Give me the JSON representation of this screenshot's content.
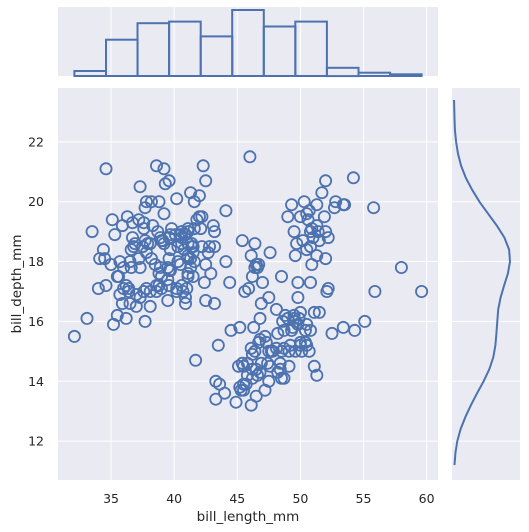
{
  "chart_data": {
    "type": "scatter",
    "joint": {
      "xlabel": "bill_length_mm",
      "ylabel": "bill_depth_mm",
      "xlim": [
        30.8,
        60.9
      ],
      "ylim": [
        10.7,
        23.8
      ],
      "xticks": [
        35,
        40,
        45,
        50,
        55,
        60
      ],
      "yticks": [
        12,
        14,
        16,
        18,
        20,
        22
      ],
      "grid": true,
      "marker": "open-circle",
      "points": [
        [
          32.1,
          15.5
        ],
        [
          33.1,
          16.1
        ],
        [
          33.5,
          19.0
        ],
        [
          34.0,
          17.1
        ],
        [
          34.1,
          18.1
        ],
        [
          34.4,
          18.4
        ],
        [
          34.5,
          18.1
        ],
        [
          34.6,
          21.1
        ],
        [
          34.6,
          17.2
        ],
        [
          35.0,
          17.9
        ],
        [
          35.1,
          19.4
        ],
        [
          35.2,
          15.9
        ],
        [
          35.3,
          18.9
        ],
        [
          35.5,
          16.2
        ],
        [
          35.5,
          17.5
        ],
        [
          35.6,
          17.5
        ],
        [
          35.7,
          16.9
        ],
        [
          35.7,
          18.0
        ],
        [
          35.9,
          16.6
        ],
        [
          35.9,
          19.2
        ],
        [
          36.0,
          17.1
        ],
        [
          36.0,
          17.8
        ],
        [
          36.2,
          16.1
        ],
        [
          36.2,
          17.2
        ],
        [
          36.3,
          19.5
        ],
        [
          36.4,
          17.0
        ],
        [
          36.4,
          17.1
        ],
        [
          36.5,
          16.6
        ],
        [
          36.5,
          18.0
        ],
        [
          36.6,
          17.8
        ],
        [
          36.6,
          18.4
        ],
        [
          36.7,
          18.8
        ],
        [
          36.7,
          19.3
        ],
        [
          36.8,
          18.5
        ],
        [
          36.9,
          18.6
        ],
        [
          37.0,
          16.5
        ],
        [
          37.0,
          16.9
        ],
        [
          37.2,
          18.1
        ],
        [
          37.2,
          19.4
        ],
        [
          37.3,
          16.8
        ],
        [
          37.3,
          17.8
        ],
        [
          37.3,
          20.5
        ],
        [
          37.5,
          18.5
        ],
        [
          37.6,
          17.0
        ],
        [
          37.6,
          19.1
        ],
        [
          37.6,
          19.3
        ],
        [
          37.7,
          16.0
        ],
        [
          37.7,
          18.7
        ],
        [
          37.7,
          19.8
        ],
        [
          37.8,
          17.1
        ],
        [
          37.8,
          18.3
        ],
        [
          37.8,
          20.0
        ],
        [
          37.9,
          18.6
        ],
        [
          38.1,
          16.5
        ],
        [
          38.1,
          17.0
        ],
        [
          38.1,
          18.6
        ],
        [
          38.2,
          18.1
        ],
        [
          38.2,
          20.0
        ],
        [
          38.3,
          19.2
        ],
        [
          38.5,
          17.9
        ],
        [
          38.6,
          17.0
        ],
        [
          38.6,
          17.2
        ],
        [
          38.6,
          21.2
        ],
        [
          38.7,
          19.0
        ],
        [
          38.8,
          17.2
        ],
        [
          38.8,
          17.6
        ],
        [
          38.8,
          20.0
        ],
        [
          38.9,
          17.8
        ],
        [
          38.9,
          18.8
        ],
        [
          39.0,
          17.1
        ],
        [
          39.0,
          17.5
        ],
        [
          39.0,
          18.7
        ],
        [
          39.1,
          18.7
        ],
        [
          39.2,
          18.6
        ],
        [
          39.2,
          19.6
        ],
        [
          39.2,
          21.1
        ],
        [
          39.3,
          20.6
        ],
        [
          39.5,
          16.7
        ],
        [
          39.5,
          17.8
        ],
        [
          39.5,
          17.4
        ],
        [
          39.6,
          17.2
        ],
        [
          39.6,
          17.7
        ],
        [
          39.6,
          18.1
        ],
        [
          39.6,
          18.8
        ],
        [
          39.6,
          20.7
        ],
        [
          39.7,
          17.7
        ],
        [
          39.7,
          18.4
        ],
        [
          39.7,
          18.9
        ],
        [
          39.8,
          19.1
        ],
        [
          40.1,
          18.9
        ],
        [
          40.2,
          17.0
        ],
        [
          40.2,
          17.1
        ],
        [
          40.2,
          20.1
        ],
        [
          40.3,
          18.0
        ],
        [
          40.3,
          18.5
        ],
        [
          40.5,
          17.9
        ],
        [
          40.5,
          18.9
        ],
        [
          40.6,
          17.2
        ],
        [
          40.6,
          18.6
        ],
        [
          40.6,
          18.8
        ],
        [
          40.6,
          19.0
        ],
        [
          40.7,
          17.0
        ],
        [
          40.8,
          18.4
        ],
        [
          40.8,
          18.9
        ],
        [
          40.9,
          16.6
        ],
        [
          40.9,
          16.8
        ],
        [
          40.9,
          18.9
        ],
        [
          41.0,
          17.1
        ],
        [
          41.1,
          17.5
        ],
        [
          41.1,
          17.6
        ],
        [
          41.1,
          18.1
        ],
        [
          41.1,
          18.2
        ],
        [
          41.1,
          18.6
        ],
        [
          41.1,
          19.0
        ],
        [
          41.1,
          19.1
        ],
        [
          41.3,
          17.8
        ],
        [
          41.3,
          18.1
        ],
        [
          41.3,
          20.3
        ],
        [
          41.4,
          18.5
        ],
        [
          41.4,
          18.6
        ],
        [
          41.5,
          17.5
        ],
        [
          41.5,
          18.3
        ],
        [
          41.5,
          18.5
        ],
        [
          41.6,
          18.0
        ],
        [
          41.6,
          19.1
        ],
        [
          41.6,
          20.0
        ],
        [
          41.7,
          14.7
        ],
        [
          41.8,
          19.4
        ],
        [
          42.0,
          19.5
        ],
        [
          42.0,
          20.2
        ],
        [
          42.1,
          19.1
        ],
        [
          42.2,
          18.5
        ],
        [
          42.2,
          19.5
        ],
        [
          42.3,
          21.2
        ],
        [
          42.4,
          17.3
        ],
        [
          42.5,
          16.7
        ],
        [
          42.5,
          17.9
        ],
        [
          42.5,
          20.7
        ],
        [
          42.7,
          18.3
        ],
        [
          42.8,
          18.5
        ],
        [
          42.9,
          17.6
        ],
        [
          43.1,
          19.2
        ],
        [
          43.2,
          16.6
        ],
        [
          43.2,
          18.5
        ],
        [
          43.2,
          19.0
        ],
        [
          43.3,
          13.4
        ],
        [
          43.3,
          14.0
        ],
        [
          43.5,
          15.2
        ],
        [
          43.6,
          13.9
        ],
        [
          44.0,
          13.6
        ],
        [
          44.1,
          18.0
        ],
        [
          44.1,
          19.7
        ],
        [
          44.4,
          17.3
        ],
        [
          44.5,
          15.7
        ],
        [
          44.9,
          13.3
        ],
        [
          45.1,
          14.5
        ],
        [
          45.2,
          13.8
        ],
        [
          45.2,
          15.8
        ],
        [
          45.3,
          13.7
        ],
        [
          45.4,
          14.6
        ],
        [
          45.4,
          18.7
        ],
        [
          45.5,
          13.7
        ],
        [
          45.5,
          13.9
        ],
        [
          45.5,
          14.5
        ],
        [
          45.6,
          17.0
        ],
        [
          45.7,
          13.9
        ],
        [
          45.8,
          14.2
        ],
        [
          45.8,
          14.6
        ],
        [
          45.9,
          17.1
        ],
        [
          46.0,
          21.5
        ],
        [
          46.1,
          13.2
        ],
        [
          46.1,
          15.1
        ],
        [
          46.1,
          18.2
        ],
        [
          46.2,
          14.1
        ],
        [
          46.2,
          14.4
        ],
        [
          46.2,
          17.5
        ],
        [
          46.2,
          14.9
        ],
        [
          46.3,
          15.8
        ],
        [
          46.4,
          15.0
        ],
        [
          46.4,
          18.6
        ],
        [
          46.4,
          17.8
        ],
        [
          46.5,
          13.5
        ],
        [
          46.5,
          14.4
        ],
        [
          46.5,
          17.9
        ],
        [
          46.6,
          14.2
        ],
        [
          46.6,
          17.8
        ],
        [
          46.7,
          15.3
        ],
        [
          46.7,
          17.9
        ],
        [
          46.8,
          14.3
        ],
        [
          46.8,
          15.4
        ],
        [
          46.8,
          16.1
        ],
        [
          46.9,
          14.6
        ],
        [
          46.9,
          16.6
        ],
        [
          47.0,
          17.3
        ],
        [
          47.2,
          13.7
        ],
        [
          47.2,
          15.5
        ],
        [
          47.3,
          15.3
        ],
        [
          47.4,
          14.6
        ],
        [
          47.5,
          14.0
        ],
        [
          47.5,
          15.0
        ],
        [
          47.5,
          16.8
        ],
        [
          47.6,
          14.5
        ],
        [
          47.6,
          18.3
        ],
        [
          47.7,
          15.0
        ],
        [
          47.8,
          15.0
        ],
        [
          48.1,
          15.1
        ],
        [
          48.1,
          16.4
        ],
        [
          48.2,
          14.3
        ],
        [
          48.2,
          15.6
        ],
        [
          48.4,
          14.4
        ],
        [
          48.4,
          14.6
        ],
        [
          48.5,
          14.1
        ],
        [
          48.5,
          15.0
        ],
        [
          48.5,
          17.5
        ],
        [
          48.6,
          16.0
        ],
        [
          48.7,
          14.1
        ],
        [
          48.7,
          15.1
        ],
        [
          48.7,
          15.7
        ],
        [
          48.8,
          16.2
        ],
        [
          49.0,
          16.1
        ],
        [
          49.0,
          19.5
        ],
        [
          49.1,
          14.5
        ],
        [
          49.1,
          15.0
        ],
        [
          49.2,
          15.2
        ],
        [
          49.3,
          15.7
        ],
        [
          49.3,
          19.9
        ],
        [
          49.4,
          15.8
        ],
        [
          49.5,
          16.1
        ],
        [
          49.5,
          16.2
        ],
        [
          49.5,
          19.0
        ],
        [
          49.6,
          15.0
        ],
        [
          49.6,
          16.0
        ],
        [
          49.6,
          18.2
        ],
        [
          49.7,
          18.6
        ],
        [
          49.8,
          15.9
        ],
        [
          49.8,
          16.8
        ],
        [
          49.8,
          17.3
        ],
        [
          49.9,
          16.1
        ],
        [
          50.0,
          15.2
        ],
        [
          50.0,
          15.3
        ],
        [
          50.0,
          16.3
        ],
        [
          50.0,
          19.5
        ],
        [
          50.1,
          15.0
        ],
        [
          50.2,
          18.7
        ],
        [
          50.3,
          20.0
        ],
        [
          50.4,
          15.7
        ],
        [
          50.4,
          15.3
        ],
        [
          50.5,
          15.2
        ],
        [
          50.5,
          15.9
        ],
        [
          50.5,
          18.4
        ],
        [
          50.5,
          19.6
        ],
        [
          50.6,
          19.4
        ],
        [
          50.7,
          15.0
        ],
        [
          50.7,
          19.7
        ],
        [
          50.8,
          15.7
        ],
        [
          50.8,
          17.3
        ],
        [
          50.8,
          18.5
        ],
        [
          50.8,
          19.0
        ],
        [
          50.9,
          17.9
        ],
        [
          50.9,
          19.1
        ],
        [
          51.0,
          18.8
        ],
        [
          51.1,
          14.5
        ],
        [
          51.1,
          16.3
        ],
        [
          51.3,
          14.2
        ],
        [
          51.3,
          18.2
        ],
        [
          51.3,
          19.2
        ],
        [
          51.3,
          19.9
        ],
        [
          51.4,
          19.0
        ],
        [
          51.5,
          16.3
        ],
        [
          51.5,
          18.7
        ],
        [
          51.7,
          20.3
        ],
        [
          51.9,
          19.5
        ],
        [
          52.0,
          18.1
        ],
        [
          52.0,
          19.0
        ],
        [
          52.0,
          20.7
        ],
        [
          52.1,
          17.0
        ],
        [
          52.2,
          17.1
        ],
        [
          52.2,
          18.8
        ],
        [
          52.5,
          15.6
        ],
        [
          52.7,
          19.8
        ],
        [
          52.8,
          20.0
        ],
        [
          53.4,
          15.8
        ],
        [
          53.4,
          19.9
        ],
        [
          53.5,
          19.9
        ],
        [
          54.2,
          20.8
        ],
        [
          54.3,
          15.7
        ],
        [
          55.1,
          16.0
        ],
        [
          55.8,
          19.8
        ],
        [
          55.9,
          17.0
        ],
        [
          58.0,
          17.8
        ],
        [
          59.6,
          17.0
        ]
      ]
    },
    "x_histogram": {
      "bin_edges": [
        32.1,
        34.6,
        37.1,
        39.6,
        42.1,
        44.6,
        47.1,
        49.6,
        52.1,
        54.6,
        57.1,
        59.6
      ],
      "counts": [
        3,
        22,
        32,
        33,
        24,
        40,
        30,
        33,
        5,
        2,
        1
      ]
    },
    "y_kde": {
      "y": [
        11.2,
        11.6,
        12.0,
        12.4,
        12.8,
        13.2,
        13.6,
        14.0,
        14.4,
        14.8,
        15.2,
        15.6,
        16.0,
        16.4,
        16.8,
        17.2,
        17.6,
        18.0,
        18.4,
        18.8,
        19.2,
        19.6,
        20.0,
        20.4,
        20.8,
        21.2,
        21.6,
        22.0,
        22.4,
        22.8,
        23.2,
        23.4
      ],
      "density": [
        0.002,
        0.006,
        0.014,
        0.028,
        0.048,
        0.072,
        0.098,
        0.126,
        0.15,
        0.167,
        0.176,
        0.18,
        0.184,
        0.188,
        0.198,
        0.213,
        0.229,
        0.238,
        0.234,
        0.214,
        0.182,
        0.145,
        0.108,
        0.077,
        0.05,
        0.03,
        0.017,
        0.009,
        0.004,
        0.002,
        0.001,
        0.0
      ]
    }
  },
  "colors": {
    "marker": "#4c72b0",
    "axes_bg": "#eaeaf2",
    "grid": "#ffffff",
    "text": "#262626"
  }
}
